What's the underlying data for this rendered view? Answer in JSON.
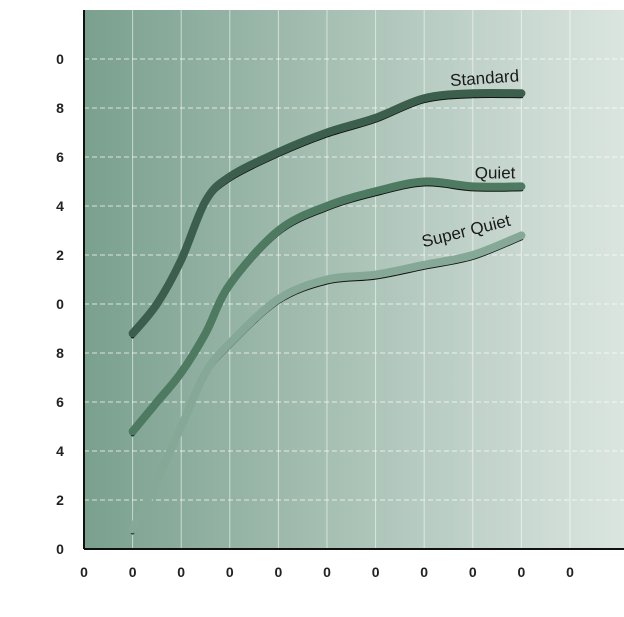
{
  "chart_data": {
    "type": "line",
    "title": "",
    "xlabel": "",
    "ylabel": "",
    "xlim": [
      0,
      11
    ],
    "ylim": [
      0,
      11
    ],
    "x_ticks": [
      {
        "value": 0,
        "label": "0"
      },
      {
        "value": 1,
        "label": "0"
      },
      {
        "value": 2,
        "label": "0"
      },
      {
        "value": 3,
        "label": "0"
      },
      {
        "value": 4,
        "label": "0"
      },
      {
        "value": 5,
        "label": "0"
      },
      {
        "value": 6,
        "label": "0"
      },
      {
        "value": 7,
        "label": "0"
      },
      {
        "value": 8,
        "label": "0"
      },
      {
        "value": 9,
        "label": "0"
      },
      {
        "value": 10,
        "label": "0"
      }
    ],
    "y_ticks": [
      {
        "value": 0,
        "label": "0"
      },
      {
        "value": 1,
        "label": "2"
      },
      {
        "value": 2,
        "label": "4"
      },
      {
        "value": 3,
        "label": "6"
      },
      {
        "value": 4,
        "label": "8"
      },
      {
        "value": 5,
        "label": "0"
      },
      {
        "value": 6,
        "label": "2"
      },
      {
        "value": 7,
        "label": "4"
      },
      {
        "value": 8,
        "label": "6"
      },
      {
        "value": 9,
        "label": "8"
      },
      {
        "value": 10,
        "label": "0"
      }
    ],
    "grid": true,
    "background_gradient": [
      "#7aa08e",
      "#dbe5e0"
    ],
    "series": [
      {
        "name": "Standard",
        "color": "#3c5e4c",
        "x": [
          1,
          1.5,
          2,
          2.5,
          3,
          4,
          5,
          6,
          7,
          8,
          9
        ],
        "y": [
          4.4,
          5.0,
          5.9,
          7.1,
          7.6,
          8.1,
          8.5,
          8.8,
          9.2,
          9.3,
          9.3
        ]
      },
      {
        "name": "Quiet",
        "color": "#4d7a60",
        "x": [
          1,
          1.5,
          2,
          2.5,
          3,
          4,
          5,
          6,
          7,
          8,
          9
        ],
        "y": [
          2.4,
          3.0,
          3.6,
          4.4,
          5.4,
          6.5,
          7.0,
          7.3,
          7.5,
          7.4,
          7.4
        ]
      },
      {
        "name": "Super Quiet",
        "color": "#86a896",
        "x": [
          1,
          1.5,
          2,
          2.5,
          3,
          4,
          5,
          6,
          7,
          8,
          9
        ],
        "y": [
          0.4,
          1.4,
          2.5,
          3.6,
          4.2,
          5.1,
          5.5,
          5.6,
          5.8,
          6.0,
          6.4
        ]
      }
    ]
  }
}
